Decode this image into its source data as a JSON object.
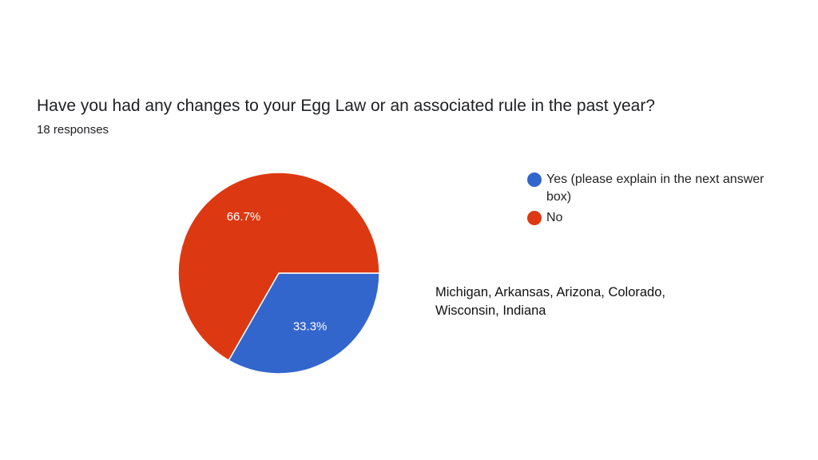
{
  "question": {
    "title": "Have you had any changes to your Egg Law or an associated rule in the past year?",
    "responses": "18 responses"
  },
  "chart_data": {
    "type": "pie",
    "title": "Have you had any changes to your Egg Law or an associated rule in the past year?",
    "slices": [
      {
        "label": "Yes (please explain in the next answer box)",
        "value": 33.3,
        "display": "33.3%",
        "color": "#3366cc"
      },
      {
        "label": "No",
        "value": 66.7,
        "display": "66.7%",
        "color": "#dc3912"
      }
    ],
    "legend_position": "right"
  },
  "legend": {
    "items": [
      {
        "label": "Yes (please explain in the next answer box)",
        "color": "#3366cc"
      },
      {
        "label": "No",
        "color": "#dc3912"
      }
    ]
  },
  "annotation": {
    "text": "Michigan, Arkansas, Arizona, Colorado, Wisconsin, Indiana"
  }
}
